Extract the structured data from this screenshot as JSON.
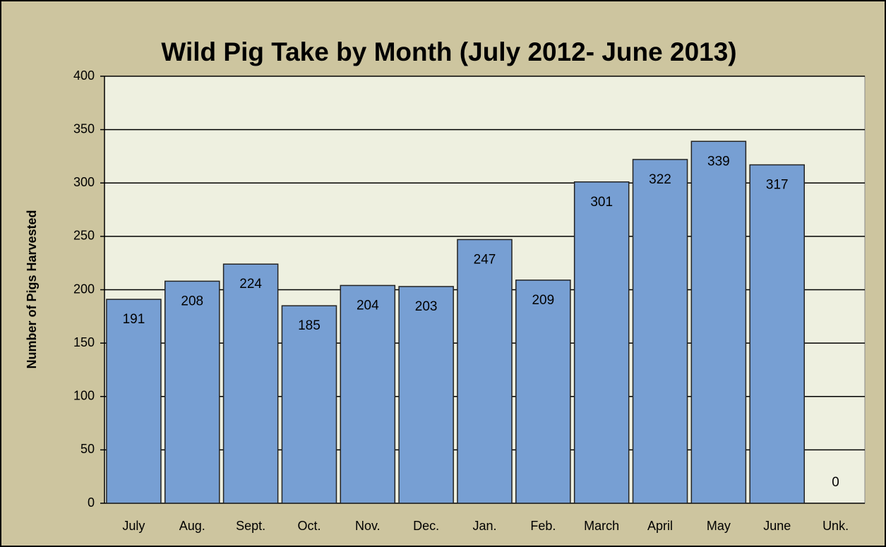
{
  "chart_data": {
    "type": "bar",
    "title": "Wild Pig Take by Month (July 2012- June 2013)",
    "y_label": "Number of Pigs Harvested",
    "categories": [
      "July",
      "Aug.",
      "Sept.",
      "Oct.",
      "Nov.",
      "Dec.",
      "Jan.",
      "Feb.",
      "March",
      "April",
      "May",
      "June",
      "Unk."
    ],
    "values": [
      191,
      208,
      224,
      185,
      204,
      203,
      247,
      209,
      301,
      322,
      339,
      317,
      0
    ],
    "color": "#779fd3",
    "ylim": [
      0,
      400
    ],
    "yticks": [
      0,
      50,
      100,
      150,
      200,
      250,
      300,
      350,
      400
    ],
    "grid": true
  }
}
